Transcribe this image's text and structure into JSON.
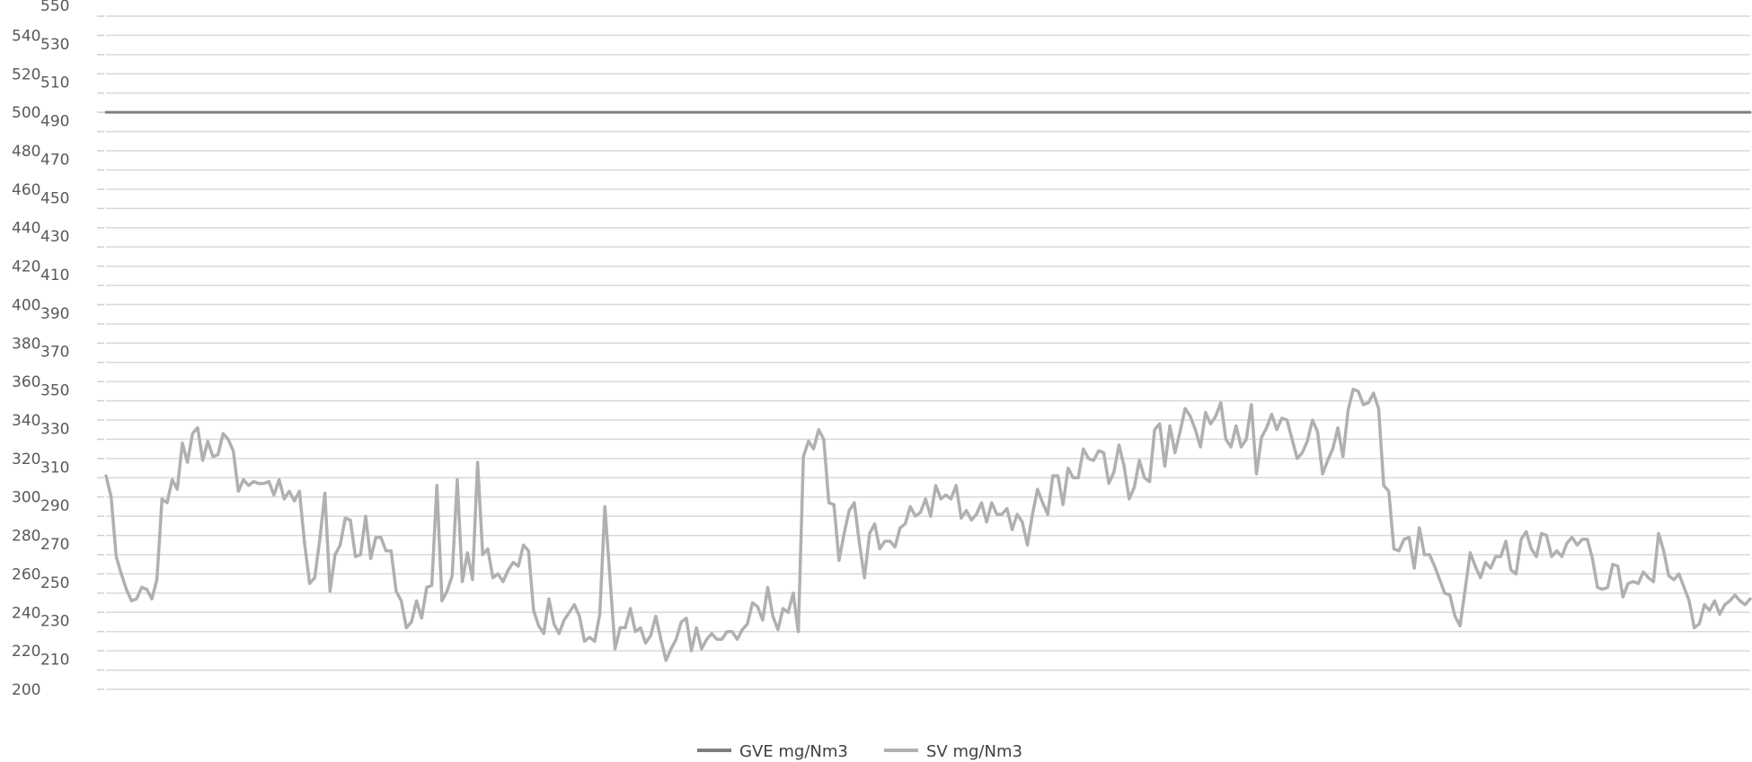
{
  "chart_data": {
    "type": "line",
    "title": "",
    "xlabel": "",
    "ylabel": "",
    "ylim": [
      200,
      550
    ],
    "y_tick_step": 10,
    "grid": true,
    "legend_position": "bottom",
    "series": [
      {
        "name": "GVE mg/Nm3",
        "color": "#7f7f7f",
        "values": [
          500,
          500
        ]
      },
      {
        "name": "SV mg/Nm3",
        "color": "#b0b0b0",
        "values": [
          311,
          300,
          269,
          260,
          252,
          246,
          247,
          253,
          252,
          247,
          257,
          299,
          297,
          309,
          304,
          328,
          318,
          333,
          336,
          319,
          329,
          321,
          322,
          333,
          330,
          324,
          303,
          309,
          306,
          308,
          307,
          307,
          308,
          301,
          309,
          299,
          303,
          298,
          303,
          276,
          255,
          258,
          278,
          302,
          251,
          270,
          275,
          289,
          288,
          269,
          270,
          290,
          268,
          279,
          279,
          272,
          272,
          251,
          246,
          232,
          235,
          246,
          237,
          253,
          254,
          306,
          246,
          251,
          259,
          309,
          256,
          271,
          257,
          318,
          270,
          273,
          258,
          260,
          256,
          262,
          266,
          264,
          275,
          272,
          241,
          233,
          229,
          247,
          234,
          229,
          236,
          240,
          244,
          238,
          225,
          227,
          225,
          239,
          295,
          258,
          221,
          232,
          232,
          242,
          230,
          232,
          224,
          228,
          238,
          226,
          215,
          221,
          226,
          235,
          237,
          220,
          232,
          221,
          226,
          229,
          226,
          226,
          230,
          230,
          226,
          231,
          234,
          245,
          243,
          236,
          253,
          238,
          231,
          242,
          240,
          250,
          230,
          321,
          329,
          325,
          335,
          330,
          297,
          296,
          267,
          281,
          293,
          297,
          276,
          258,
          281,
          286,
          273,
          277,
          277,
          274,
          284,
          286,
          295,
          290,
          292,
          299,
          290,
          306,
          299,
          301,
          299,
          306,
          289,
          293,
          288,
          291,
          297,
          287,
          297,
          291,
          291,
          294,
          283,
          291,
          287,
          275,
          291,
          304,
          297,
          291,
          311,
          311,
          296,
          315,
          310,
          310,
          325,
          320,
          319,
          324,
          323,
          307,
          313,
          327,
          316,
          299,
          305,
          319,
          310,
          308,
          335,
          338,
          316,
          337,
          323,
          334,
          346,
          342,
          335,
          326,
          344,
          338,
          342,
          349,
          330,
          326,
          337,
          326,
          330,
          348,
          312,
          331,
          336,
          343,
          335,
          341,
          340,
          330,
          320,
          323,
          329,
          340,
          334,
          312,
          319,
          325,
          336,
          321,
          345,
          356,
          355,
          348,
          349,
          354,
          346,
          306,
          303,
          273,
          272,
          278,
          279,
          263,
          284,
          270,
          270,
          264,
          257,
          250,
          249,
          238,
          233,
          252,
          271,
          264,
          258,
          266,
          263,
          269,
          269,
          277,
          262,
          260,
          278,
          282,
          273,
          269,
          281,
          280,
          269,
          272,
          269,
          276,
          279,
          275,
          278,
          278,
          268,
          253,
          252,
          253,
          265,
          264,
          248,
          255,
          256,
          255,
          261,
          258,
          256,
          281,
          272,
          259,
          257,
          260,
          253,
          246,
          232,
          234,
          244,
          241,
          246,
          239,
          244,
          246,
          249,
          246,
          244,
          247
        ]
      }
    ]
  }
}
